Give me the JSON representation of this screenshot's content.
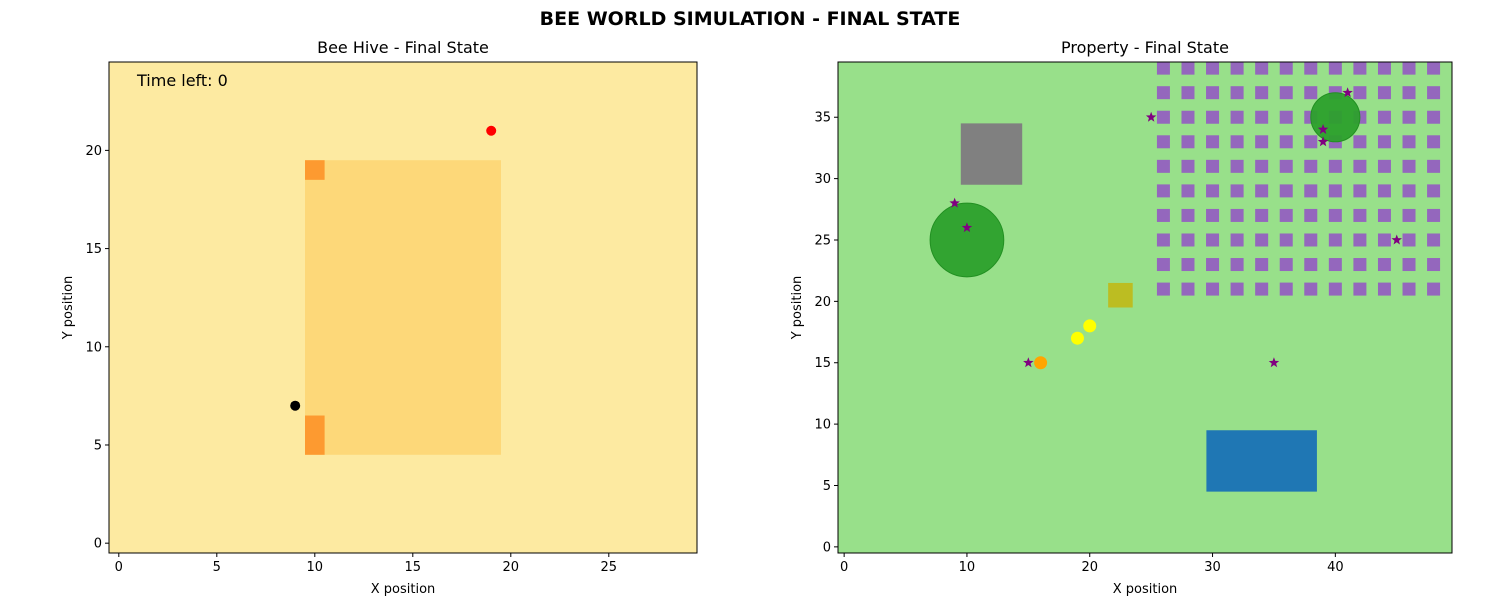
{
  "figure_title": "BEE WORLD SIMULATION - FINAL STATE",
  "colors": {
    "hive_background": "#fdeaa1",
    "hive_body": "#fdd879",
    "hive_entrance": "#fd9a30",
    "field_background": "#98e08a",
    "flower": "#9467bd",
    "flower_star": "#800080",
    "tree": "#2ca02c",
    "building": "#808080",
    "pond": "#1f77b4",
    "box": "#bcbd22",
    "yellow_bee": "#ffff00",
    "orange_bee": "#ffa500",
    "red_dot": "#ff0000",
    "black_dot": "#000000"
  },
  "chart_data": [
    {
      "type": "heatmap",
      "title": "Bee Hive - Final State",
      "xlabel": "X position",
      "ylabel": "Y position",
      "annotation": "Time left: 0",
      "xlim": [
        -0.5,
        29.5
      ],
      "ylim": [
        -0.5,
        24.5
      ],
      "xticks": [
        0,
        5,
        10,
        15,
        20,
        25
      ],
      "yticks": [
        0,
        5,
        10,
        15,
        20
      ],
      "grid": false,
      "cells": [
        {
          "kind": "hive_body",
          "x0": 9.5,
          "x1": 19.5,
          "y0": 4.5,
          "y1": 19.5
        },
        {
          "kind": "hive_entrance",
          "x0": 9.5,
          "x1": 10.5,
          "y0": 18.5,
          "y1": 19.5
        },
        {
          "kind": "hive_entrance",
          "x0": 9.5,
          "x1": 10.5,
          "y0": 4.5,
          "y1": 6.5
        }
      ],
      "points": [
        {
          "kind": "red_dot",
          "x": 19,
          "y": 21
        },
        {
          "kind": "black_dot",
          "x": 9,
          "y": 7
        }
      ]
    },
    {
      "type": "scatter",
      "title": "Property - Final State",
      "xlabel": "X position",
      "ylabel": "Y position",
      "xlim": [
        -0.5,
        49.5
      ],
      "ylim": [
        -0.5,
        39.5
      ],
      "xticks": [
        0,
        10,
        20,
        30,
        40
      ],
      "yticks": [
        0,
        5,
        10,
        15,
        20,
        25,
        30,
        35
      ],
      "grid": false,
      "flower_grid": {
        "x_start": 26,
        "x_end": 48,
        "x_step": 2,
        "y_start": 21,
        "y_end": 39,
        "y_step": 2
      },
      "rects": [
        {
          "kind": "building",
          "x0": 9.5,
          "x1": 14.5,
          "y0": 29.5,
          "y1": 34.5
        },
        {
          "kind": "pond",
          "x0": 29.5,
          "x1": 38.5,
          "y0": 4.5,
          "y1": 9.5
        },
        {
          "kind": "box",
          "x0": 21.5,
          "x1": 23.5,
          "y0": 19.5,
          "y1": 21.5
        }
      ],
      "trees": [
        {
          "x": 10,
          "y": 25,
          "r": 3
        },
        {
          "x": 40,
          "y": 35,
          "r": 2
        }
      ],
      "bees": [
        {
          "kind": "yellow_bee",
          "x": 19,
          "y": 17
        },
        {
          "kind": "yellow_bee",
          "x": 20,
          "y": 18
        },
        {
          "kind": "orange_bee",
          "x": 16,
          "y": 15
        }
      ],
      "stars": [
        {
          "x": 41,
          "y": 37
        },
        {
          "x": 25,
          "y": 35
        },
        {
          "x": 39,
          "y": 34
        },
        {
          "x": 39,
          "y": 33
        },
        {
          "x": 9,
          "y": 28
        },
        {
          "x": 10,
          "y": 26
        },
        {
          "x": 45,
          "y": 25
        },
        {
          "x": 15,
          "y": 15
        },
        {
          "x": 35,
          "y": 15
        }
      ]
    }
  ]
}
